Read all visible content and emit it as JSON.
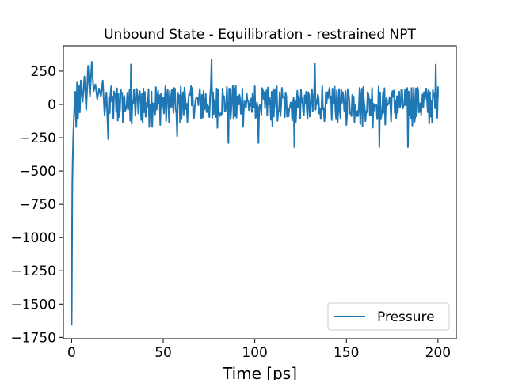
{
  "chart_data": {
    "type": "line",
    "title": "Unbound State - Equilibration - restrained NPT",
    "xlabel": "Time [ps]",
    "ylabel": "",
    "xlim": [
      -4.5,
      210
    ],
    "ylim": [
      -1760,
      440
    ],
    "xticks": [
      0,
      50,
      100,
      150,
      200
    ],
    "yticks": [
      250,
      0,
      -250,
      -500,
      -750,
      -1000,
      -1250,
      -1500,
      -1750
    ],
    "xtick_labels": [
      "0",
      "50",
      "100",
      "150",
      "200"
    ],
    "ytick_labels": [
      "250",
      "0",
      "−250",
      "−500",
      "−750",
      "−1000",
      "−1250",
      "−1500",
      "−1750"
    ],
    "grid": false,
    "legend": {
      "position": "lower-right",
      "entries": [
        "Pressure"
      ]
    },
    "series": [
      {
        "name": "Pressure",
        "color": "#1f77b4",
        "x": [
          0,
          0.1,
          0.2,
          0.3,
          0.4,
          0.6,
          0.8,
          1.0,
          1.3,
          1.6,
          2.0,
          2.5,
          3.0,
          3.5,
          4.0,
          4.5,
          5.0,
          6.0,
          7.0,
          8.0,
          9.0,
          10.0,
          11.0,
          12.0,
          13.0,
          14.0,
          15.0,
          16.0,
          17.0,
          18.0,
          19.0,
          20.0
        ],
        "y": [
          -1660,
          -1500,
          -1150,
          -820,
          -600,
          -420,
          -300,
          -200,
          -90,
          10,
          95,
          -170,
          170,
          -110,
          140,
          -60,
          180,
          20,
          210,
          -40,
          290,
          60,
          320,
          100,
          150,
          40,
          120,
          60,
          180,
          -80,
          90,
          -260
        ],
        "noise": {
          "x_start": 20,
          "x_end": 200,
          "step": 0.4,
          "mean": 10,
          "typical_max": 140,
          "typical_min": -200,
          "peaks": [
            {
              "x": 32.5,
              "y": 300
            },
            {
              "x": 76.5,
              "y": 340
            },
            {
              "x": 133.0,
              "y": 310
            },
            {
              "x": 199.0,
              "y": 300
            },
            {
              "x": 57.5,
              "y": -240
            },
            {
              "x": 85.5,
              "y": -290
            },
            {
              "x": 102.0,
              "y": -290
            },
            {
              "x": 121.5,
              "y": -320
            },
            {
              "x": 168.0,
              "y": -320
            },
            {
              "x": 183.5,
              "y": -320
            }
          ]
        }
      }
    ]
  }
}
